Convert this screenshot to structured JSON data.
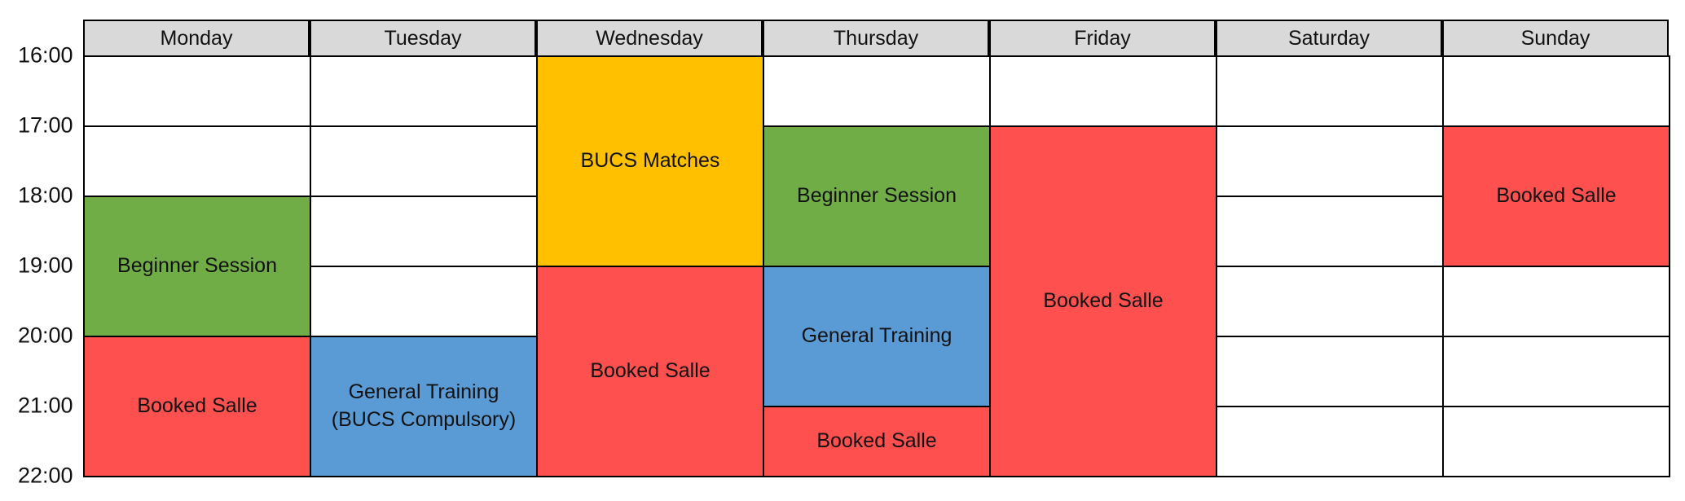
{
  "start_hour": 16,
  "end_hour": 22,
  "time_labels": [
    "16:00",
    "17:00",
    "18:00",
    "19:00",
    "20:00",
    "21:00",
    "22:00"
  ],
  "colors": {
    "header": "#d9d9d9",
    "empty": "#ffffff",
    "green": "#70ad47",
    "yellow": "#ffc000",
    "red": "#ff5050",
    "blue": "#5b9bd5"
  },
  "days": [
    {
      "name": "Monday",
      "events": [
        {
          "label": "Beginner Session",
          "start": 18,
          "end": 20,
          "color": "green"
        },
        {
          "label": "Booked Salle",
          "start": 20,
          "end": 22,
          "color": "red"
        }
      ]
    },
    {
      "name": "Tuesday",
      "events": [
        {
          "label": "General Training\n(BUCS Compulsory)",
          "start": 20,
          "end": 22,
          "color": "blue"
        }
      ]
    },
    {
      "name": "Wednesday",
      "events": [
        {
          "label": "BUCS Matches",
          "start": 16,
          "end": 19,
          "color": "yellow"
        },
        {
          "label": "Booked Salle",
          "start": 19,
          "end": 22,
          "color": "red"
        }
      ]
    },
    {
      "name": "Thursday",
      "events": [
        {
          "label": "Beginner Session",
          "start": 17,
          "end": 19,
          "color": "green"
        },
        {
          "label": "General Training",
          "start": 19,
          "end": 21,
          "color": "blue"
        },
        {
          "label": "Booked Salle",
          "start": 21,
          "end": 22,
          "color": "red"
        }
      ]
    },
    {
      "name": "Friday",
      "events": [
        {
          "label": "Booked Salle",
          "start": 17,
          "end": 22,
          "color": "red"
        }
      ]
    },
    {
      "name": "Saturday",
      "events": []
    },
    {
      "name": "Sunday",
      "events": [
        {
          "label": "Booked Salle",
          "start": 17,
          "end": 19,
          "color": "red"
        }
      ]
    }
  ]
}
